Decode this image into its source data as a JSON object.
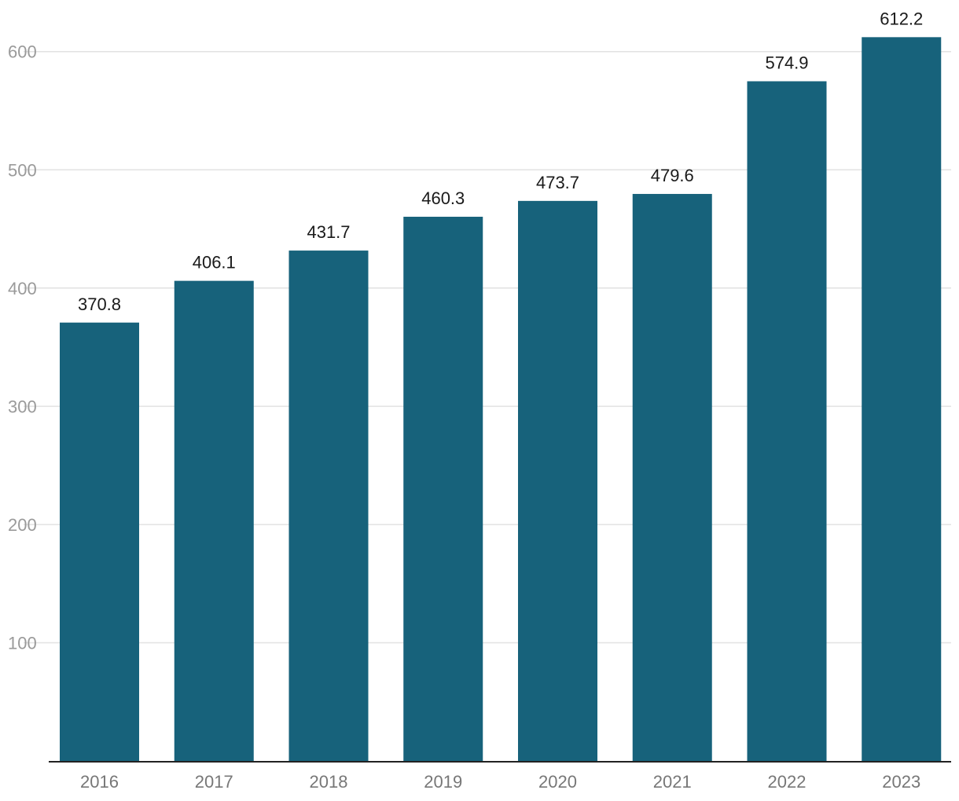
{
  "chart_data": {
    "type": "bar",
    "categories": [
      "2016",
      "2017",
      "2018",
      "2019",
      "2020",
      "2021",
      "2022",
      "2023"
    ],
    "values": [
      370.8,
      406.1,
      431.7,
      460.3,
      473.7,
      479.6,
      574.9,
      612.2
    ],
    "data_labels": [
      "370.8",
      "406.1",
      "431.7",
      "460.3",
      "473.7",
      "479.6",
      "574.9",
      "612.2"
    ],
    "y_ticks": [
      100,
      200,
      300,
      400,
      500,
      600
    ],
    "y_tick_labels": [
      "100",
      "200",
      "300",
      "400",
      "500",
      "600"
    ],
    "ylim": [
      0,
      620
    ],
    "grid": true,
    "legend": "none",
    "bar_color": "#17627b"
  }
}
